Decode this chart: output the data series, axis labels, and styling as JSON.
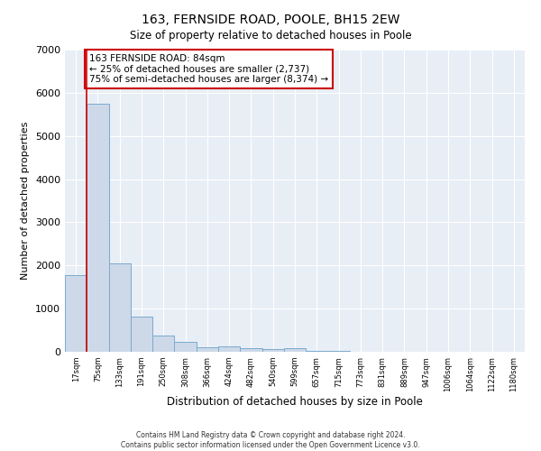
{
  "title": "163, FERNSIDE ROAD, POOLE, BH15 2EW",
  "subtitle": "Size of property relative to detached houses in Poole",
  "xlabel": "Distribution of detached houses by size in Poole",
  "ylabel": "Number of detached properties",
  "bin_labels": [
    "17sqm",
    "75sqm",
    "133sqm",
    "191sqm",
    "250sqm",
    "308sqm",
    "366sqm",
    "424sqm",
    "482sqm",
    "540sqm",
    "599sqm",
    "657sqm",
    "715sqm",
    "773sqm",
    "831sqm",
    "889sqm",
    "947sqm",
    "1006sqm",
    "1064sqm",
    "1122sqm",
    "1180sqm"
  ],
  "bar_values": [
    1780,
    5750,
    2050,
    820,
    370,
    230,
    110,
    115,
    75,
    55,
    75,
    30,
    20,
    10,
    5,
    5,
    3,
    3,
    3,
    3,
    3
  ],
  "bar_color": "#cdd9e8",
  "bar_edge_color": "#7aaad0",
  "vline_color": "#cc0000",
  "annotation_text": "163 FERNSIDE ROAD: 84sqm\n← 25% of detached houses are smaller (2,737)\n75% of semi-detached houses are larger (8,374) →",
  "annotation_box_color": "#cc0000",
  "ylim": [
    0,
    7000
  ],
  "yticks": [
    0,
    1000,
    2000,
    3000,
    4000,
    5000,
    6000,
    7000
  ],
  "footer_line1": "Contains HM Land Registry data © Crown copyright and database right 2024.",
  "footer_line2": "Contains public sector information licensed under the Open Government Licence v3.0.",
  "plot_bg_color": "#e8eef5"
}
